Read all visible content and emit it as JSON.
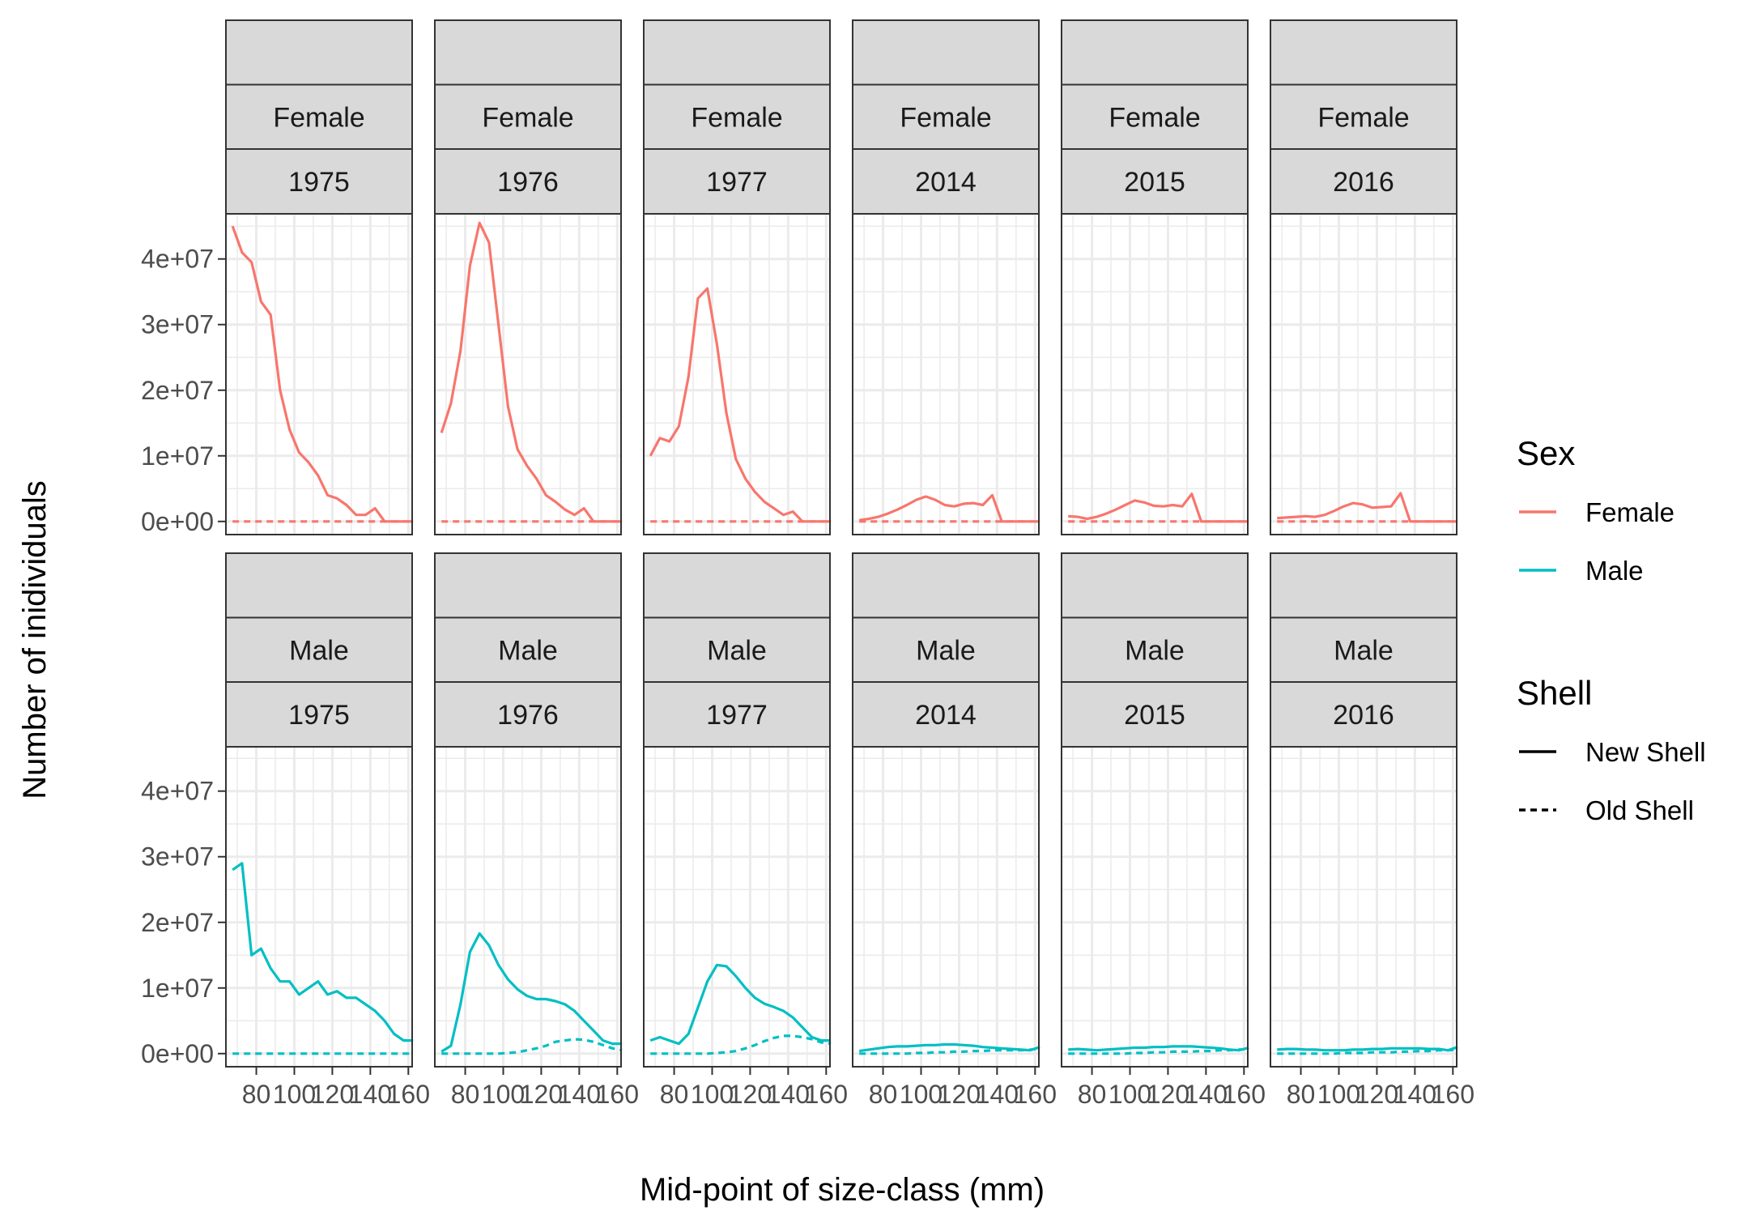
{
  "chart_data": {
    "type": "line",
    "xlabel": "Mid-point of size-class (mm)",
    "ylabel": "Number of inidividuals",
    "xlim": [
      64,
      162
    ],
    "ylim": [
      -2000000,
      47000000
    ],
    "xticks": [
      80,
      100,
      120,
      140,
      160
    ],
    "yticks": [
      0,
      10000000,
      20000000,
      30000000,
      40000000
    ],
    "ytick_labels": [
      "0e+00",
      "1e+07",
      "2e+07",
      "3e+07",
      "4e+07"
    ],
    "grid": true,
    "facet_rows": [
      "Female",
      "Male"
    ],
    "facet_cols": [
      "1975",
      "1976",
      "1977",
      "2014",
      "2015",
      "2016"
    ],
    "colors": {
      "Female": "#F8766D",
      "Male": "#00BFC4",
      "strip": "#D9D9D9",
      "grid": "#EBEBEB",
      "border": "#333333"
    },
    "legend": {
      "position": "right",
      "sex_title": "Sex",
      "sex_entries": [
        "Female",
        "Male"
      ],
      "shell_title": "Shell",
      "shell_entries": [
        "New Shell",
        "Old Shell"
      ]
    },
    "x": [
      67.5,
      72.5,
      77.5,
      82.5,
      87.5,
      92.5,
      97.5,
      102.5,
      107.5,
      112.5,
      117.5,
      122.5,
      127.5,
      132.5,
      137.5,
      142.5,
      147.5,
      152.5,
      157.5,
      162.5
    ],
    "series": [
      {
        "sex": "Female",
        "year": "1975",
        "shell": "New Shell",
        "values": [
          45000000,
          41000000,
          39500000,
          33500000,
          31500000,
          20000000,
          14000000,
          10500000,
          9000000,
          7000000,
          4000000,
          3500000,
          2500000,
          1000000,
          1000000,
          2000000,
          0,
          0,
          0,
          0
        ]
      },
      {
        "sex": "Female",
        "year": "1975",
        "shell": "Old Shell",
        "values": [
          0,
          0,
          0,
          0,
          0,
          0,
          0,
          0,
          0,
          0,
          0,
          0,
          0,
          0,
          0,
          0,
          0,
          0,
          0,
          0
        ]
      },
      {
        "sex": "Female",
        "year": "1976",
        "shell": "New Shell",
        "values": [
          13500000,
          18000000,
          26000000,
          39000000,
          45500000,
          42500000,
          30000000,
          17500000,
          11000000,
          8500000,
          6500000,
          4000000,
          3000000,
          1800000,
          1000000,
          2000000,
          0,
          0,
          0,
          0
        ]
      },
      {
        "sex": "Female",
        "year": "1976",
        "shell": "Old Shell",
        "values": [
          0,
          0,
          0,
          0,
          0,
          0,
          0,
          0,
          0,
          0,
          0,
          0,
          0,
          0,
          0,
          0,
          0,
          0,
          0,
          0
        ]
      },
      {
        "sex": "Female",
        "year": "1977",
        "shell": "New Shell",
        "values": [
          10000000,
          12700000,
          12200000,
          14500000,
          22000000,
          34000000,
          35500000,
          27000000,
          16500000,
          9500000,
          6500000,
          4500000,
          3000000,
          2000000,
          1000000,
          1500000,
          0,
          0,
          0,
          0
        ]
      },
      {
        "sex": "Female",
        "year": "1977",
        "shell": "Old Shell",
        "values": [
          0,
          0,
          0,
          0,
          0,
          0,
          0,
          0,
          0,
          0,
          0,
          0,
          0,
          0,
          0,
          0,
          0,
          0,
          0,
          0
        ]
      },
      {
        "sex": "Female",
        "year": "2014",
        "shell": "New Shell",
        "values": [
          200000,
          400000,
          700000,
          1200000,
          1800000,
          2500000,
          3300000,
          3800000,
          3300000,
          2500000,
          2300000,
          2700000,
          2800000,
          2500000,
          4000000,
          0,
          0,
          0,
          0,
          0
        ]
      },
      {
        "sex": "Female",
        "year": "2014",
        "shell": "Old Shell",
        "values": [
          0,
          0,
          0,
          0,
          0,
          0,
          0,
          0,
          0,
          0,
          0,
          0,
          0,
          0,
          0,
          0,
          0,
          0,
          0,
          0
        ]
      },
      {
        "sex": "Female",
        "year": "2015",
        "shell": "New Shell",
        "values": [
          800000,
          700000,
          400000,
          700000,
          1200000,
          1800000,
          2500000,
          3200000,
          2900000,
          2400000,
          2300000,
          2500000,
          2300000,
          4200000,
          0,
          0,
          0,
          0,
          0,
          0
        ]
      },
      {
        "sex": "Female",
        "year": "2015",
        "shell": "Old Shell",
        "values": [
          0,
          0,
          0,
          0,
          0,
          0,
          0,
          0,
          0,
          0,
          0,
          0,
          0,
          0,
          0,
          0,
          0,
          0,
          0,
          0
        ]
      },
      {
        "sex": "Female",
        "year": "2016",
        "shell": "New Shell",
        "values": [
          500000,
          600000,
          700000,
          800000,
          700000,
          1000000,
          1600000,
          2300000,
          2800000,
          2600000,
          2100000,
          2200000,
          2300000,
          4300000,
          0,
          0,
          0,
          0,
          0,
          0
        ]
      },
      {
        "sex": "Female",
        "year": "2016",
        "shell": "Old Shell",
        "values": [
          0,
          0,
          0,
          0,
          0,
          0,
          0,
          0,
          0,
          0,
          0,
          0,
          0,
          0,
          0,
          0,
          0,
          0,
          0,
          0
        ]
      },
      {
        "sex": "Male",
        "year": "1975",
        "shell": "New Shell",
        "values": [
          28000000,
          29000000,
          15000000,
          16000000,
          13000000,
          11000000,
          11000000,
          9000000,
          10000000,
          11000000,
          9000000,
          9500000,
          8500000,
          8500000,
          7500000,
          6500000,
          5000000,
          3000000,
          2000000,
          2000000
        ]
      },
      {
        "sex": "Male",
        "year": "1975",
        "shell": "Old Shell",
        "values": [
          0,
          0,
          0,
          0,
          0,
          0,
          0,
          0,
          0,
          0,
          0,
          0,
          0,
          0,
          0,
          0,
          0,
          0,
          0,
          0
        ]
      },
      {
        "sex": "Male",
        "year": "1976",
        "shell": "New Shell",
        "values": [
          300000,
          1200000,
          7500000,
          15500000,
          18300000,
          16500000,
          13500000,
          11300000,
          9800000,
          8800000,
          8300000,
          8300000,
          8000000,
          7500000,
          6500000,
          5000000,
          3500000,
          2000000,
          1500000,
          1500000
        ]
      },
      {
        "sex": "Male",
        "year": "1976",
        "shell": "Old Shell",
        "values": [
          0,
          0,
          0,
          0,
          0,
          0,
          0,
          100000,
          200000,
          500000,
          800000,
          1200000,
          1800000,
          2000000,
          2200000,
          2100000,
          1800000,
          1300000,
          800000,
          500000
        ]
      },
      {
        "sex": "Male",
        "year": "1977",
        "shell": "New Shell",
        "values": [
          2000000,
          2500000,
          2000000,
          1500000,
          3000000,
          7000000,
          11000000,
          13500000,
          13300000,
          11800000,
          10000000,
          8500000,
          7600000,
          7100000,
          6500000,
          5500000,
          4000000,
          2500000,
          2000000,
          2000000
        ]
      },
      {
        "sex": "Male",
        "year": "1977",
        "shell": "Old Shell",
        "values": [
          0,
          0,
          0,
          0,
          0,
          0,
          0,
          100000,
          200000,
          400000,
          800000,
          1300000,
          1900000,
          2400000,
          2700000,
          2700000,
          2500000,
          2200000,
          1700000,
          1500000
        ]
      },
      {
        "sex": "Male",
        "year": "2014",
        "shell": "New Shell",
        "values": [
          400000,
          600000,
          800000,
          1000000,
          1100000,
          1100000,
          1200000,
          1300000,
          1300000,
          1400000,
          1400000,
          1300000,
          1200000,
          1000000,
          900000,
          800000,
          700000,
          600000,
          500000,
          1000000
        ]
      },
      {
        "sex": "Male",
        "year": "2014",
        "shell": "Old Shell",
        "values": [
          0,
          0,
          0,
          0,
          0,
          0,
          100000,
          100000,
          200000,
          200000,
          300000,
          300000,
          400000,
          400000,
          500000,
          500000,
          500000,
          500000,
          600000,
          800000
        ]
      },
      {
        "sex": "Male",
        "year": "2015",
        "shell": "New Shell",
        "values": [
          600000,
          700000,
          600000,
          500000,
          600000,
          700000,
          800000,
          900000,
          900000,
          1000000,
          1000000,
          1100000,
          1100000,
          1100000,
          1000000,
          900000,
          800000,
          600000,
          500000,
          900000
        ]
      },
      {
        "sex": "Male",
        "year": "2015",
        "shell": "Old Shell",
        "values": [
          0,
          0,
          0,
          0,
          0,
          0,
          0,
          100000,
          100000,
          200000,
          200000,
          300000,
          300000,
          300000,
          400000,
          400000,
          500000,
          500000,
          600000,
          700000
        ]
      },
      {
        "sex": "Male",
        "year": "2016",
        "shell": "New Shell",
        "values": [
          600000,
          700000,
          700000,
          600000,
          600000,
          500000,
          500000,
          500000,
          600000,
          600000,
          700000,
          700000,
          800000,
          800000,
          800000,
          800000,
          700000,
          700000,
          500000,
          1000000
        ]
      },
      {
        "sex": "Male",
        "year": "2016",
        "shell": "Old Shell",
        "values": [
          0,
          0,
          0,
          0,
          0,
          0,
          0,
          100000,
          100000,
          100000,
          200000,
          200000,
          200000,
          300000,
          300000,
          400000,
          400000,
          500000,
          500000,
          600000
        ]
      }
    ]
  }
}
